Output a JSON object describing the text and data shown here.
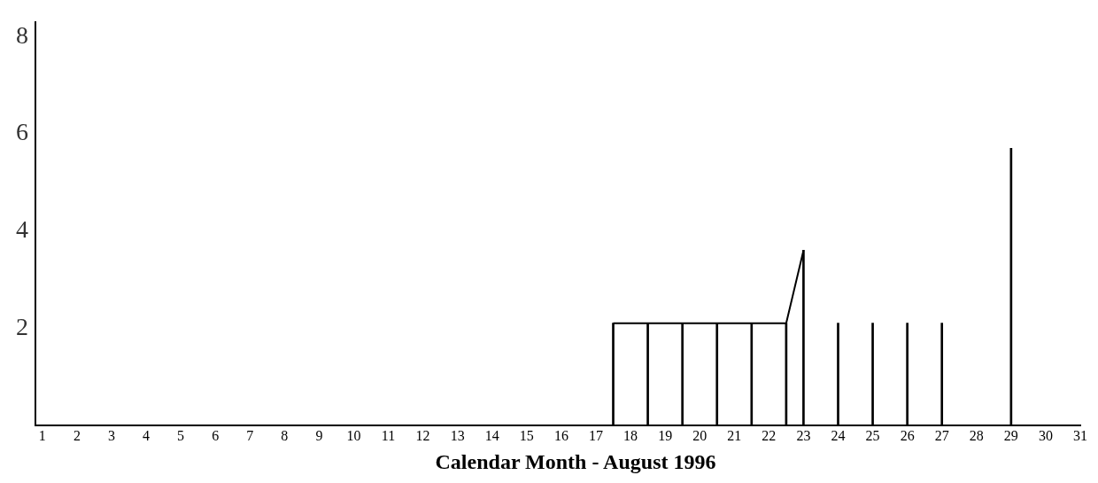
{
  "chart_data": {
    "type": "bar",
    "xlabel": "Calendar Month - August 1996",
    "series": [
      {
        "color": "#000000",
        "x": [
          17.5,
          18.5,
          19.5,
          20.5,
          21.5,
          22.5,
          23,
          24,
          25,
          26,
          27,
          29
        ],
        "values": [
          2.1,
          2.1,
          2.1,
          2.1,
          2.1,
          2.1,
          3.6,
          2.1,
          2.1,
          2.1,
          2.1,
          5.7
        ]
      },
      {
        "type": "line",
        "color": "#000000",
        "x": [
          17.5,
          22.5,
          23
        ],
        "values": [
          2.1,
          2.1,
          3.6
        ]
      }
    ],
    "xlim": [
      0.8,
      31
    ],
    "xticks": [
      1,
      2,
      3,
      4,
      5,
      6,
      7,
      8,
      9,
      10,
      11,
      12,
      13,
      14,
      15,
      16,
      17,
      18,
      19,
      20,
      21,
      22,
      23,
      24,
      25,
      26,
      27,
      28,
      29,
      30,
      31
    ],
    "ylim": [
      0,
      8.3
    ],
    "yticks": [
      2,
      4,
      6,
      8
    ],
    "grid": false,
    "legend": false,
    "marker": "none",
    "line_style": "solid"
  }
}
